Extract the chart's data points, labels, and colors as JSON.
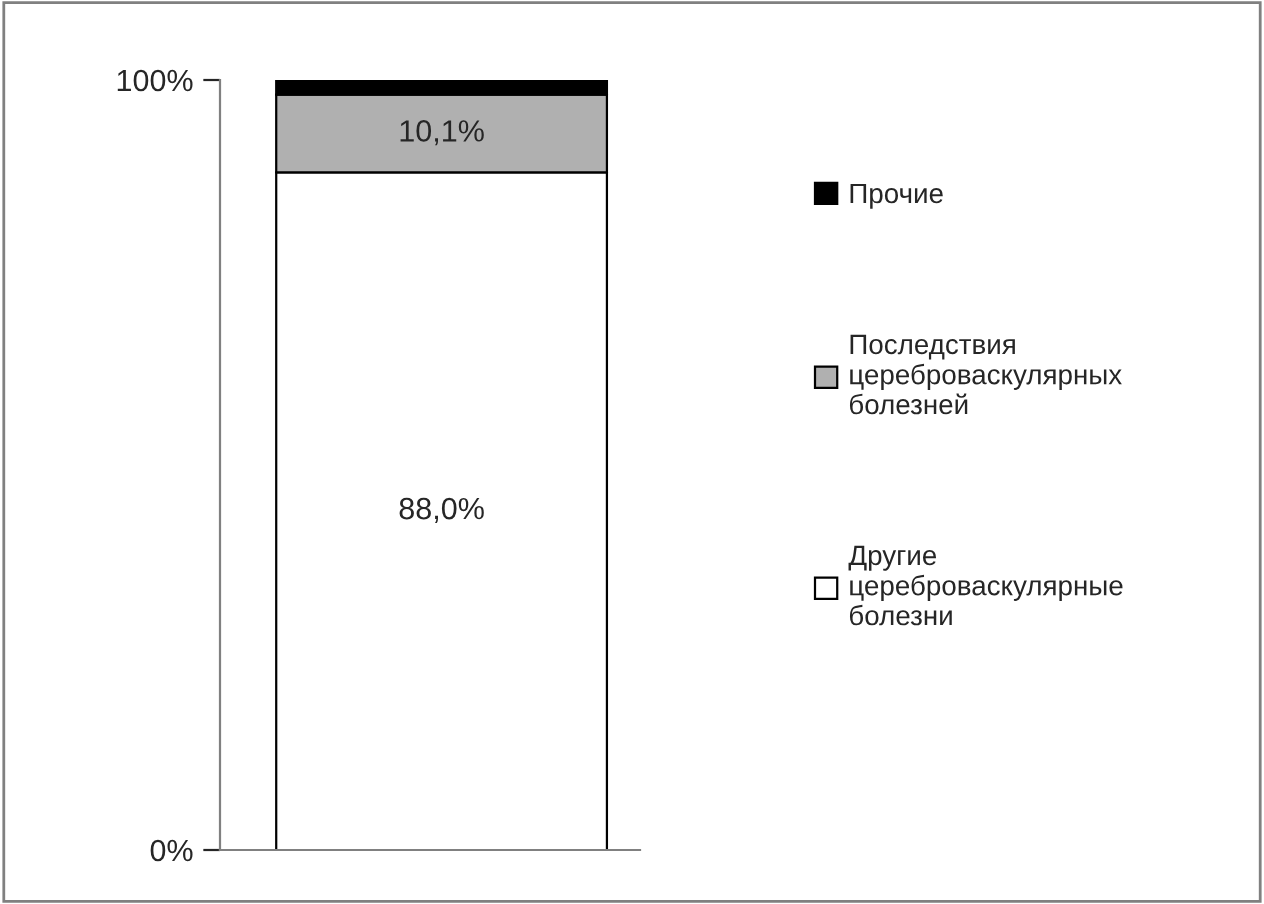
{
  "chart_data": {
    "type": "bar",
    "stacked": true,
    "categories": [
      null
    ],
    "series": [
      {
        "name": "Другие\nцереброваскулярные\nболезни",
        "color": "#ffffff",
        "values": [
          88.0
        ],
        "value_labels": [
          "88,0%"
        ]
      },
      {
        "name": "Последствия\nцереброваскулярных\nболезней",
        "color": "#b0b0b0",
        "values": [
          10.1
        ],
        "value_labels": [
          "10,1%"
        ]
      },
      {
        "name": "Прочие",
        "color": "#000000",
        "values": [
          1.9
        ],
        "value_labels": [
          null
        ]
      }
    ],
    "ylim": [
      0,
      100
    ],
    "yticks": [
      {
        "value": 0,
        "label": "0%"
      },
      {
        "value": 100,
        "label": "100%"
      }
    ],
    "grid": false,
    "legend": "right"
  }
}
